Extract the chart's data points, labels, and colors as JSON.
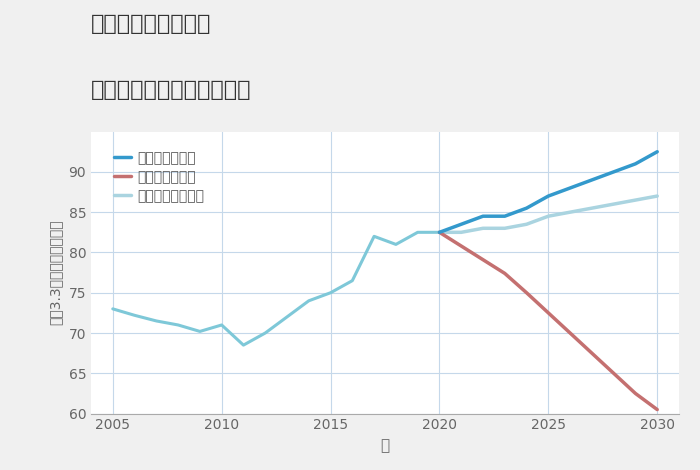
{
  "title_line1": "福岡県福工大前駅の",
  "title_line2": "中古マンションの価格推移",
  "xlabel": "年",
  "ylabel": "坤（3.3㎡）単価（万円）",
  "background_color": "#f0f0f0",
  "plot_bg_color": "#ffffff",
  "grid_color": "#c5d8ea",
  "xlim": [
    2004,
    2031
  ],
  "ylim": [
    60,
    95
  ],
  "yticks": [
    60,
    65,
    70,
    75,
    80,
    85,
    90
  ],
  "xticks": [
    2005,
    2010,
    2015,
    2020,
    2025,
    2030
  ],
  "historical": {
    "years": [
      2005,
      2006,
      2007,
      2008,
      2009,
      2010,
      2011,
      2012,
      2013,
      2014,
      2015,
      2016,
      2017,
      2018,
      2019,
      2020
    ],
    "values": [
      73.0,
      72.2,
      71.5,
      71.0,
      70.2,
      71.0,
      68.5,
      70.0,
      72.0,
      74.0,
      75.0,
      76.5,
      82.0,
      81.0,
      82.5,
      82.5
    ],
    "color": "#7ec8d8",
    "linewidth": 2.2
  },
  "good_scenario": {
    "years": [
      2020,
      2021,
      2022,
      2023,
      2024,
      2025,
      2026,
      2027,
      2028,
      2029,
      2030
    ],
    "values": [
      82.5,
      83.5,
      84.5,
      84.5,
      85.5,
      87.0,
      88.0,
      89.0,
      90.0,
      91.0,
      92.5
    ],
    "color": "#3399cc",
    "linewidth": 2.5,
    "label": "グッドシナリオ"
  },
  "bad_scenario": {
    "years": [
      2020,
      2021,
      2022,
      2023,
      2024,
      2025,
      2026,
      2027,
      2028,
      2029,
      2030
    ],
    "values": [
      82.5,
      80.8,
      79.1,
      77.4,
      75.0,
      72.5,
      70.0,
      67.5,
      65.0,
      62.5,
      60.5
    ],
    "color": "#c47070",
    "linewidth": 2.5,
    "label": "バッドシナリオ"
  },
  "normal_scenario": {
    "years": [
      2020,
      2021,
      2022,
      2023,
      2024,
      2025,
      2026,
      2027,
      2028,
      2029,
      2030
    ],
    "values": [
      82.5,
      82.5,
      83.0,
      83.0,
      83.5,
      84.5,
      85.0,
      85.5,
      86.0,
      86.5,
      87.0
    ],
    "color": "#aad4e0",
    "linewidth": 2.5,
    "label": "ノーマルシナリオ"
  }
}
